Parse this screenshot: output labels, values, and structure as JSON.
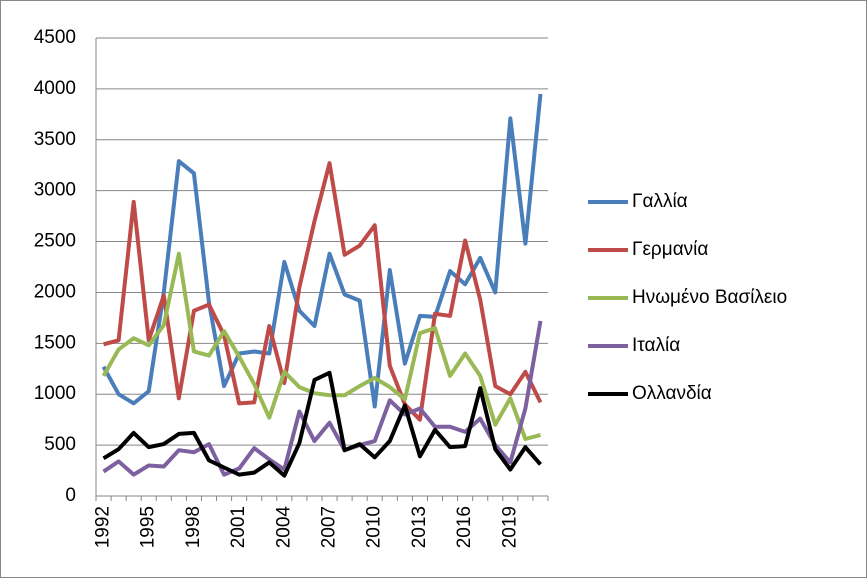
{
  "chart_data": {
    "type": "line",
    "categories": [
      "1992",
      null,
      null,
      "1995",
      null,
      null,
      "1998",
      null,
      null,
      "2001",
      null,
      null,
      "2004",
      null,
      null,
      "2007",
      null,
      null,
      "2010",
      null,
      null,
      "2013",
      null,
      null,
      "2016",
      null,
      null,
      "2019",
      null,
      null
    ],
    "series": [
      {
        "name": "Γαλλία",
        "color": "#4a7ebb",
        "values": [
          1270,
          1000,
          910,
          1030,
          2000,
          3290,
          3170,
          1900,
          1080,
          1400,
          1420,
          1400,
          2300,
          1820,
          1670,
          2380,
          1980,
          1920,
          880,
          2220,
          1300,
          1770,
          1760,
          2210,
          2080,
          2340,
          2000,
          3710,
          2480,
          3950
        ]
      },
      {
        "name": "Γερμανία",
        "color": "#be4b48",
        "values": [
          1490,
          1530,
          2890,
          1530,
          1970,
          960,
          1820,
          1880,
          1580,
          910,
          920,
          1670,
          1110,
          2050,
          2700,
          3270,
          2370,
          2460,
          2660,
          1280,
          900,
          750,
          1790,
          1770,
          2510,
          1930,
          1080,
          1000,
          1220,
          920
        ]
      },
      {
        "name": "Ηνωμένο Βασίλειο",
        "color": "#98b954",
        "values": [
          1180,
          1440,
          1550,
          1480,
          1680,
          2380,
          1420,
          1380,
          1620,
          1370,
          1100,
          770,
          1220,
          1070,
          1010,
          990,
          990,
          1080,
          1160,
          1070,
          950,
          1600,
          1650,
          1180,
          1400,
          1180,
          700,
          960,
          560,
          600
        ]
      },
      {
        "name": "Ιταλία",
        "color": "#7d60a0",
        "values": [
          240,
          340,
          210,
          300,
          290,
          450,
          430,
          510,
          210,
          270,
          470,
          360,
          260,
          830,
          540,
          720,
          450,
          500,
          540,
          940,
          800,
          860,
          680,
          680,
          630,
          760,
          500,
          330,
          860,
          1720
        ]
      },
      {
        "name": "Ολλανδία",
        "color": "#000000",
        "values": [
          370,
          460,
          620,
          480,
          510,
          610,
          620,
          350,
          280,
          210,
          230,
          330,
          200,
          520,
          1140,
          1210,
          450,
          510,
          380,
          540,
          890,
          390,
          650,
          480,
          490,
          1060,
          460,
          260,
          480,
          310
        ]
      }
    ],
    "ylim": [
      0,
      4500
    ],
    "yticks": [
      0,
      500,
      1000,
      1500,
      2000,
      2500,
      3000,
      3500,
      4000,
      4500
    ],
    "grid": true,
    "legend": "right"
  }
}
